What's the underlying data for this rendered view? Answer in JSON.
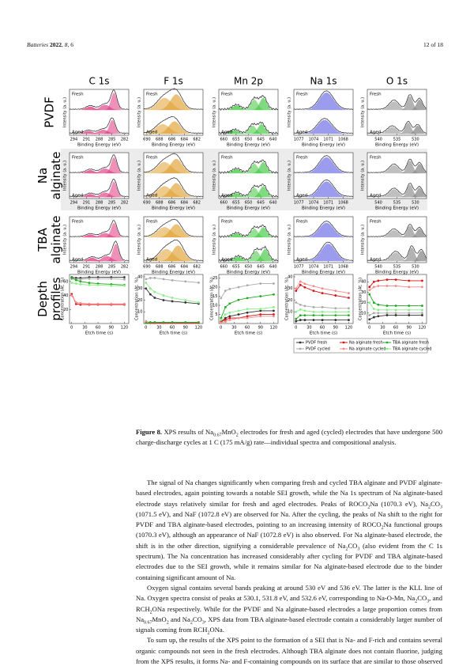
{
  "header": {
    "left": [
      "Batteries ",
      "2022",
      ", ",
      "8",
      ", 6"
    ],
    "right": "12 of 18"
  },
  "figure": {
    "columns": [
      {
        "title": "C 1s",
        "xlim": [
          295,
          281
        ],
        "xticks": [
          294,
          291,
          288,
          285,
          282
        ]
      },
      {
        "title": "F 1s",
        "xlim": [
          690.5,
          681
        ],
        "xticks": [
          690,
          688,
          686,
          684,
          682
        ]
      },
      {
        "title": "Mn 2p",
        "xlim": [
          662,
          638
        ],
        "xticks": [
          660,
          655,
          650,
          645,
          640
        ]
      },
      {
        "title": "Na 1s",
        "xlim": [
          1078,
          1066
        ],
        "xticks": [
          1077,
          1074,
          1071,
          1068
        ]
      },
      {
        "title": "O 1s",
        "xlim": [
          543,
          527
        ],
        "xticks": [
          540,
          535,
          530
        ]
      }
    ],
    "rows": [
      [
        "PVDF"
      ],
      [
        "Na",
        "alginate"
      ],
      [
        "TBA",
        "alginate"
      ],
      [
        "Depth",
        "profiles"
      ]
    ],
    "fresh": "Fresh",
    "aged": "Aged",
    "intensity_label": "Intensity (a. u.)",
    "energy_label": "Binding Energy (eV)",
    "depth": {
      "type": "line",
      "x_label": "Etch time (s)",
      "y_label": "Concentration (At. %)",
      "x": [
        0,
        10,
        20,
        40,
        60,
        90,
        120
      ],
      "xlim": [
        -5,
        130
      ],
      "xticks": [
        0,
        30,
        60,
        90,
        120
      ],
      "legend": [
        {
          "name": "PVDF fresh",
          "color": "#333333"
        },
        {
          "name": "PVDF cycled",
          "color": "#aaaaaa"
        },
        {
          "name": "Na alginate fresh",
          "color": "#dd1111"
        },
        {
          "name": "Na alginate cycled",
          "color": "#f58a8a"
        },
        {
          "name": "TBA alginate fresh",
          "color": "#22aa22"
        },
        {
          "name": "TBA alginate cycled",
          "color": "#88ee88"
        }
      ],
      "charts": [
        {
          "ylim": [
            0,
            70
          ],
          "yticks": [
            20,
            40,
            60
          ],
          "values": [
            [
              66,
              65,
              65,
              66,
              66,
              66,
              66
            ],
            [
              64,
              63,
              63,
              64,
              64,
              64,
              63
            ],
            [
              42,
              28,
              27,
              27,
              27,
              27,
              27
            ],
            [
              40,
              30,
              29,
              28,
              28,
              28,
              28
            ],
            [
              65,
              62,
              60,
              58,
              57,
              56,
              55
            ],
            [
              58,
              57,
              56,
              55,
              55,
              54,
              54
            ]
          ]
        },
        {
          "ylim": [
            0,
            42
          ],
          "yticks": [
            10,
            20,
            30,
            40
          ],
          "values": [
            [
              30,
              25,
              22,
              20,
              19,
              18,
              17
            ],
            [
              38,
              39,
              39,
              38,
              37,
              36,
              35
            ],
            [
              0.5,
              0.5,
              0.5,
              0.5,
              0.5,
              0.5,
              0.5
            ],
            [
              2,
              1,
              1,
              1,
              1,
              1,
              1
            ],
            [
              0.5,
              1,
              1,
              1,
              1,
              1,
              1
            ],
            [
              35,
              30,
              27,
              24,
              22,
              20,
              18
            ]
          ]
        },
        {
          "ylim": [
            0,
            27
          ],
          "yticks": [
            5,
            10,
            15,
            20,
            25
          ],
          "values": [
            [
              1,
              3,
              4,
              5,
              6,
              7,
              7
            ],
            [
              14,
              18,
              19,
              20,
              21,
              22,
              22
            ],
            [
              1,
              2,
              3,
              3,
              4,
              5,
              5
            ],
            [
              0.5,
              1,
              2,
              3,
              3,
              4,
              4
            ],
            [
              3,
              9,
              11,
              13,
              14,
              15,
              16
            ],
            [
              2,
              5,
              6,
              7,
              8,
              8,
              9
            ]
          ]
        },
        {
          "ylim": [
            0,
            42
          ],
          "yticks": [
            10,
            20,
            30,
            40
          ],
          "values": [
            [
              2,
              3,
              3,
              3,
              3,
              3,
              3
            ],
            [
              18,
              16,
              15,
              14,
              14,
              13,
              13
            ],
            [
              28,
              33,
              31,
              28,
              26,
              24,
              22
            ],
            [
              30,
              36,
              34,
              32,
              30,
              28,
              26
            ],
            [
              4,
              7,
              7,
              7,
              7,
              7,
              7
            ],
            [
              10,
              12,
              11,
              10,
              10,
              10,
              10
            ]
          ]
        },
        {
          "ylim": [
            0,
            47
          ],
          "yticks": [
            10,
            20,
            30,
            40
          ],
          "values": [
            [
              4,
              6,
              7,
              8,
              8,
              8,
              8
            ],
            [
              8,
              10,
              10,
              10,
              10,
              10,
              10
            ],
            [
              35,
              40,
              41,
              42,
              42,
              41,
              41
            ],
            [
              32,
              35,
              36,
              36,
              36,
              35,
              35
            ],
            [
              28,
              20,
              18,
              17,
              17,
              17,
              17
            ],
            [
              20,
              14,
              13,
              13,
              13,
              13,
              13
            ]
          ]
        }
      ]
    }
  },
  "caption": {
    "label": "Figure 8.",
    "runs": [
      " XPS results of Na",
      {
        "sub": "0.67"
      },
      "MnO",
      {
        "sub": "2"
      },
      " electrodes for fresh and aged (cycled) electrodes that have undergone 500 charge-discharge cycles at 1 C (175 mA/g) rate—individual spectra and compositional analysis."
    ]
  },
  "body": [
    [
      "The signal of Na changes significantly when comparing fresh and cycled TBA alginate and PVDF alginate-based electrodes, again pointing towards a notable SEI growth, while the Na 1s spectrum of Na alginate-based electrode stays relatively similar for fresh and aged electrodes. Peaks of ROCO",
      {
        "sub": "2"
      },
      "Na (1070.3 eV), Na",
      {
        "sub": "2"
      },
      "CO",
      {
        "sub": "3"
      },
      " (1071.5 eV), and NaF (1072.8 eV) are observed for Na. After the cycling, the peaks of Na shift to the right for PVDF and TBA alginate-based electrodes, pointing to an increasing intensity of ROCO",
      {
        "sub": "2"
      },
      "Na functional groups (1070.3 eV), although an appearance of NaF (1072.8 eV) is also observed. For Na alginate-based electrode, the shift is in the other direction, signifying a considerable prevalence of Na",
      {
        "sub": "2"
      },
      "CO",
      {
        "sub": "3"
      },
      " (also evident from the C 1s spectrum). The Na concentration has increased considerably after cycling for PVDF and TBA alginate-based electrodes due to the SEI growth, while it remains similar for Na alginate-based electrode due to the binder containing significant amount of Na."
    ],
    [
      "Oxygen signal contains several bands peaking at around 530 eV and 536 eV. The latter is the KLL line of Na. Oxygen spectra consist of peaks at 530.1, 531.8 eV, and 532.6 eV, corresponding to Na-O-Mn, Na",
      {
        "sub": "2"
      },
      "CO",
      {
        "sub": "3"
      },
      ", and RCH",
      {
        "sub": "2"
      },
      "ONa respectively. While for the PVDF and Na alginate-based electrodes a large proportion comes from Na",
      {
        "sub": "0.67"
      },
      "MnO",
      {
        "sub": "2"
      },
      " and Na",
      {
        "sub": "2"
      },
      "CO",
      {
        "sub": "3"
      },
      ", XPS data from TBA alginate-based electrode contain a considerably larger number of signals coming from RCH",
      {
        "sub": "2"
      },
      "ONa."
    ],
    [
      "To sum up, the results of the XPS point to the formation of a SEI that is Na- and F-rich and contains several organic compounds not seen in the fresh electrodes. Although TBA alginate does not contain fluorine, judging from the XPS results, it forms Na- and F-containing compounds on its surface that are similar to those observed on PVDF-based"
    ]
  ]
}
